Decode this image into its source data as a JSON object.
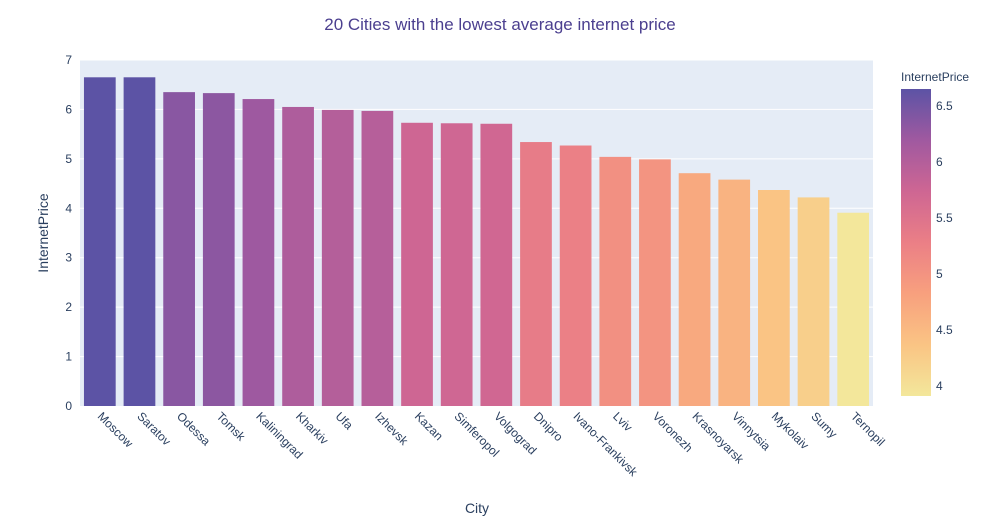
{
  "chart_data": {
    "type": "bar",
    "title": "20 Cities with the lowest average internet price",
    "xlabel": "City",
    "ylabel": "InternetPrice",
    "categories": [
      "Moscow",
      "Saratov",
      "Odessa",
      "Tomsk",
      "Kaliningrad",
      "Kharkiv",
      "Ufa",
      "Izhevsk",
      "Kazan",
      "Simferopol",
      "Volgograd",
      "Dnipro",
      "Ivano-Frankivsk",
      "Lviv",
      "Voronezh",
      "Krasnoyarsk",
      "Vinnytsia",
      "Mykolaiv",
      "Sumy",
      "Ternopil"
    ],
    "values": [
      6.65,
      6.65,
      6.35,
      6.33,
      6.21,
      6.05,
      5.99,
      5.97,
      5.73,
      5.72,
      5.71,
      5.34,
      5.27,
      5.04,
      4.99,
      4.71,
      4.58,
      4.37,
      4.22,
      3.91
    ],
    "ylim": [
      0,
      7
    ],
    "yticks": [
      "0",
      "1",
      "2",
      "3",
      "4",
      "5",
      "6",
      "7"
    ],
    "grid": true,
    "plot_background": "#e5ecf6",
    "colorbar": {
      "title": "InternetPrice",
      "range": [
        3.91,
        6.65
      ],
      "ticks": [
        "4",
        "4.5",
        "5",
        "5.5",
        "6",
        "6.5"
      ],
      "tick_values": [
        4,
        4.5,
        5,
        5.5,
        6,
        6.5
      ],
      "colors": [
        "#f3e79b",
        "#fac484",
        "#f8a07e",
        "#eb7f86",
        "#ce6693",
        "#a059a0",
        "#5c53a5"
      ]
    }
  }
}
